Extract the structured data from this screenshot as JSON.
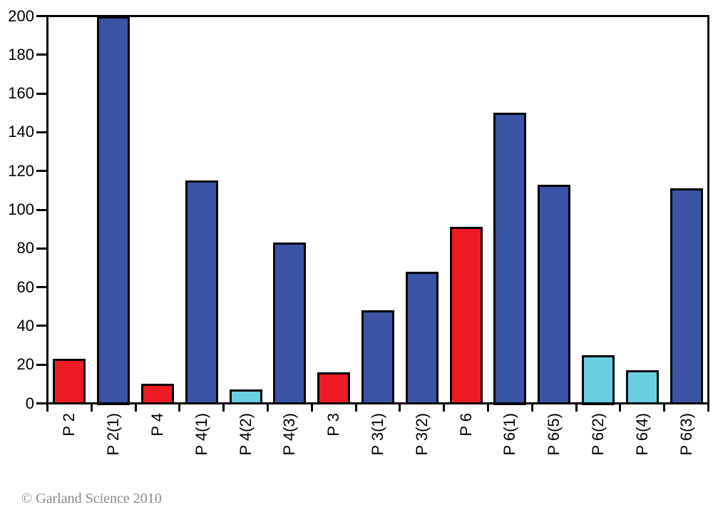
{
  "chart_data": {
    "type": "bar",
    "title": "",
    "xlabel": "",
    "ylabel": "",
    "categories": [
      "P 2",
      "P 2(1)",
      "P 4",
      "P 4(1)",
      "P 4(2)",
      "P 4(3)",
      "P 3",
      "P 3(1)",
      "P 3(2)",
      "P 6",
      "P 6(1)",
      "P 6(5)",
      "P 6(2)",
      "P 6(4)",
      "P 6(3)"
    ],
    "values": [
      23,
      200,
      10,
      115,
      7,
      83,
      16,
      48,
      68,
      91,
      150,
      113,
      25,
      17,
      111
    ],
    "bar_colors": [
      "#ED1C24",
      "#3B54A5",
      "#ED1C24",
      "#3B54A5",
      "#69CFE0",
      "#3B54A5",
      "#ED1C24",
      "#3B54A5",
      "#3B54A5",
      "#ED1C24",
      "#3B54A5",
      "#3B54A5",
      "#69CFE0",
      "#69CFE0",
      "#3B54A5"
    ],
    "ylim": [
      0,
      200
    ],
    "yticks": [
      0,
      20,
      40,
      60,
      80,
      100,
      120,
      140,
      160,
      180,
      200
    ],
    "grid": false,
    "legend": false,
    "frame": true,
    "bar_clipped_at_top": "P 2(1)"
  },
  "colors": {
    "red": "#ED1C24",
    "dark_blue": "#3B54A5",
    "cyan": "#69CFE0",
    "axis": "#000000",
    "background": "#ffffff",
    "copyright_text": "#8b8b8b"
  },
  "footer": {
    "copyright": "© Garland Science 2010"
  }
}
